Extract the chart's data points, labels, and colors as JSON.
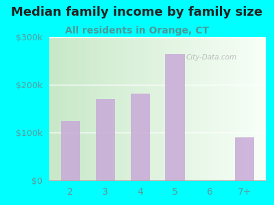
{
  "title": "Median family income by family size",
  "subtitle": "All residents in Orange, CT",
  "categories": [
    "2",
    "3",
    "4",
    "5",
    "6",
    "7+"
  ],
  "values": [
    125000,
    170000,
    182000,
    265000,
    0,
    90000
  ],
  "bar_color": "#c8aad8",
  "outer_bg_color": "#00ffff",
  "grad_color_left": "#c8e8c8",
  "grad_color_right": "#f0f8f0",
  "title_color": "#222222",
  "subtitle_color": "#4a9a9a",
  "tick_color": "#5a9a9a",
  "ylim": [
    0,
    300000
  ],
  "yticks": [
    0,
    100000,
    200000,
    300000
  ],
  "ytick_labels": [
    "$0",
    "$100k",
    "$200k",
    "$300k"
  ],
  "title_fontsize": 13,
  "subtitle_fontsize": 10,
  "watermark": "City-Data.com"
}
